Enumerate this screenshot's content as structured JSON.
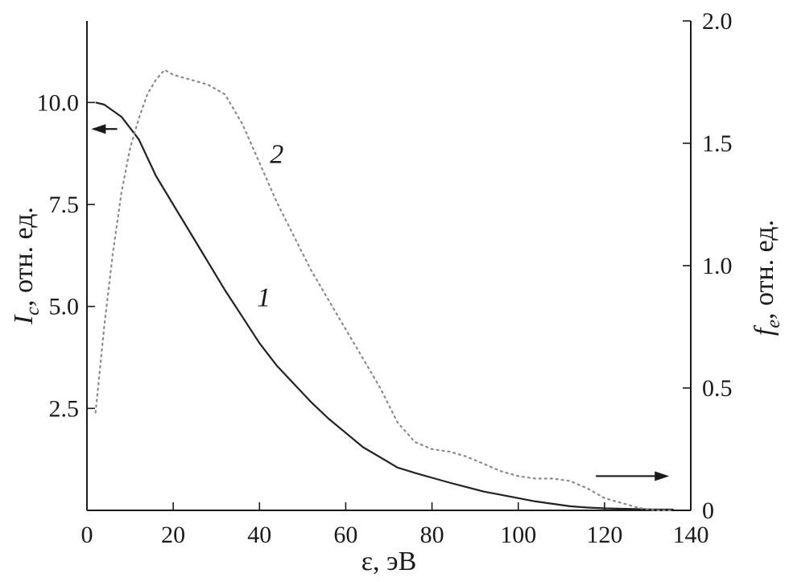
{
  "chart_data": {
    "type": "line",
    "xlabel": "ε, эВ",
    "ylabel_left": {
      "main": "I",
      "sub": "c",
      "rest": ", отн. ед."
    },
    "ylabel_right": {
      "main": "f",
      "sub": "e",
      "rest": ", отн. ед."
    },
    "xlim": [
      0,
      140
    ],
    "ylim_left": [
      0,
      12
    ],
    "ylim_right": [
      0,
      2.0
    ],
    "x_ticks": [
      0,
      20,
      40,
      60,
      80,
      100,
      120,
      140
    ],
    "y_left_ticks": [
      2.5,
      5.0,
      7.5,
      10.0
    ],
    "y_right_ticks": [
      0,
      0.5,
      1.0,
      1.5,
      2.0
    ],
    "y_left_tick_labels": [
      "2.5",
      "5.0",
      "7.5",
      "10.0"
    ],
    "y_right_tick_labels": [
      "0",
      "0.5",
      "1.0",
      "1.5",
      "2.0"
    ],
    "series": [
      {
        "label": "1",
        "axis": "left",
        "style": "solid",
        "color": "#222222",
        "x": [
          2,
          4,
          8,
          12,
          16,
          20,
          24,
          28,
          32,
          36,
          40,
          44,
          48,
          52,
          56,
          60,
          64,
          68,
          72,
          76,
          80,
          84,
          88,
          92,
          96,
          100,
          104,
          108,
          112,
          116,
          120,
          124,
          128,
          132,
          136
        ],
        "y": [
          10.0,
          9.95,
          9.65,
          9.1,
          8.2,
          7.5,
          6.8,
          6.1,
          5.4,
          4.75,
          4.1,
          3.55,
          3.1,
          2.65,
          2.25,
          1.9,
          1.55,
          1.3,
          1.05,
          0.92,
          0.8,
          0.68,
          0.57,
          0.46,
          0.38,
          0.3,
          0.22,
          0.16,
          0.1,
          0.07,
          0.05,
          0.04,
          0.03,
          0.02,
          0.02
        ]
      },
      {
        "label": "2",
        "axis": "right",
        "style": "dotted",
        "color": "#8a8a8a",
        "x": [
          2,
          4,
          6,
          8,
          10,
          12,
          14,
          16,
          18,
          20,
          24,
          28,
          32,
          36,
          40,
          44,
          48,
          52,
          56,
          60,
          64,
          68,
          72,
          76,
          80,
          84,
          88,
          92,
          96,
          100,
          104,
          108,
          112,
          116,
          120,
          124,
          128,
          132,
          136
        ],
        "y": [
          0.4,
          0.75,
          1.05,
          1.3,
          1.48,
          1.6,
          1.7,
          1.76,
          1.8,
          1.78,
          1.76,
          1.74,
          1.7,
          1.58,
          1.42,
          1.26,
          1.12,
          0.98,
          0.86,
          0.74,
          0.62,
          0.5,
          0.36,
          0.28,
          0.25,
          0.24,
          0.22,
          0.19,
          0.16,
          0.14,
          0.13,
          0.13,
          0.12,
          0.09,
          0.05,
          0.03,
          0.01,
          0.0,
          0.0
        ]
      }
    ],
    "annotations": [
      {
        "text": "1",
        "x": 41,
        "y": 5.0,
        "axis": "left"
      },
      {
        "text": "2",
        "x": 44,
        "y": 1.42,
        "axis": "right"
      }
    ],
    "arrows": [
      {
        "name": "left-axis-arrow",
        "points_to": "left",
        "x_from": 7,
        "x_to": 1,
        "y": 9.35,
        "axis": "left"
      },
      {
        "name": "right-axis-arrow",
        "points_to": "right",
        "x_from": 118,
        "x_to": 135,
        "y": 0.14,
        "axis": "right"
      }
    ],
    "grid": false,
    "legend": "none"
  }
}
